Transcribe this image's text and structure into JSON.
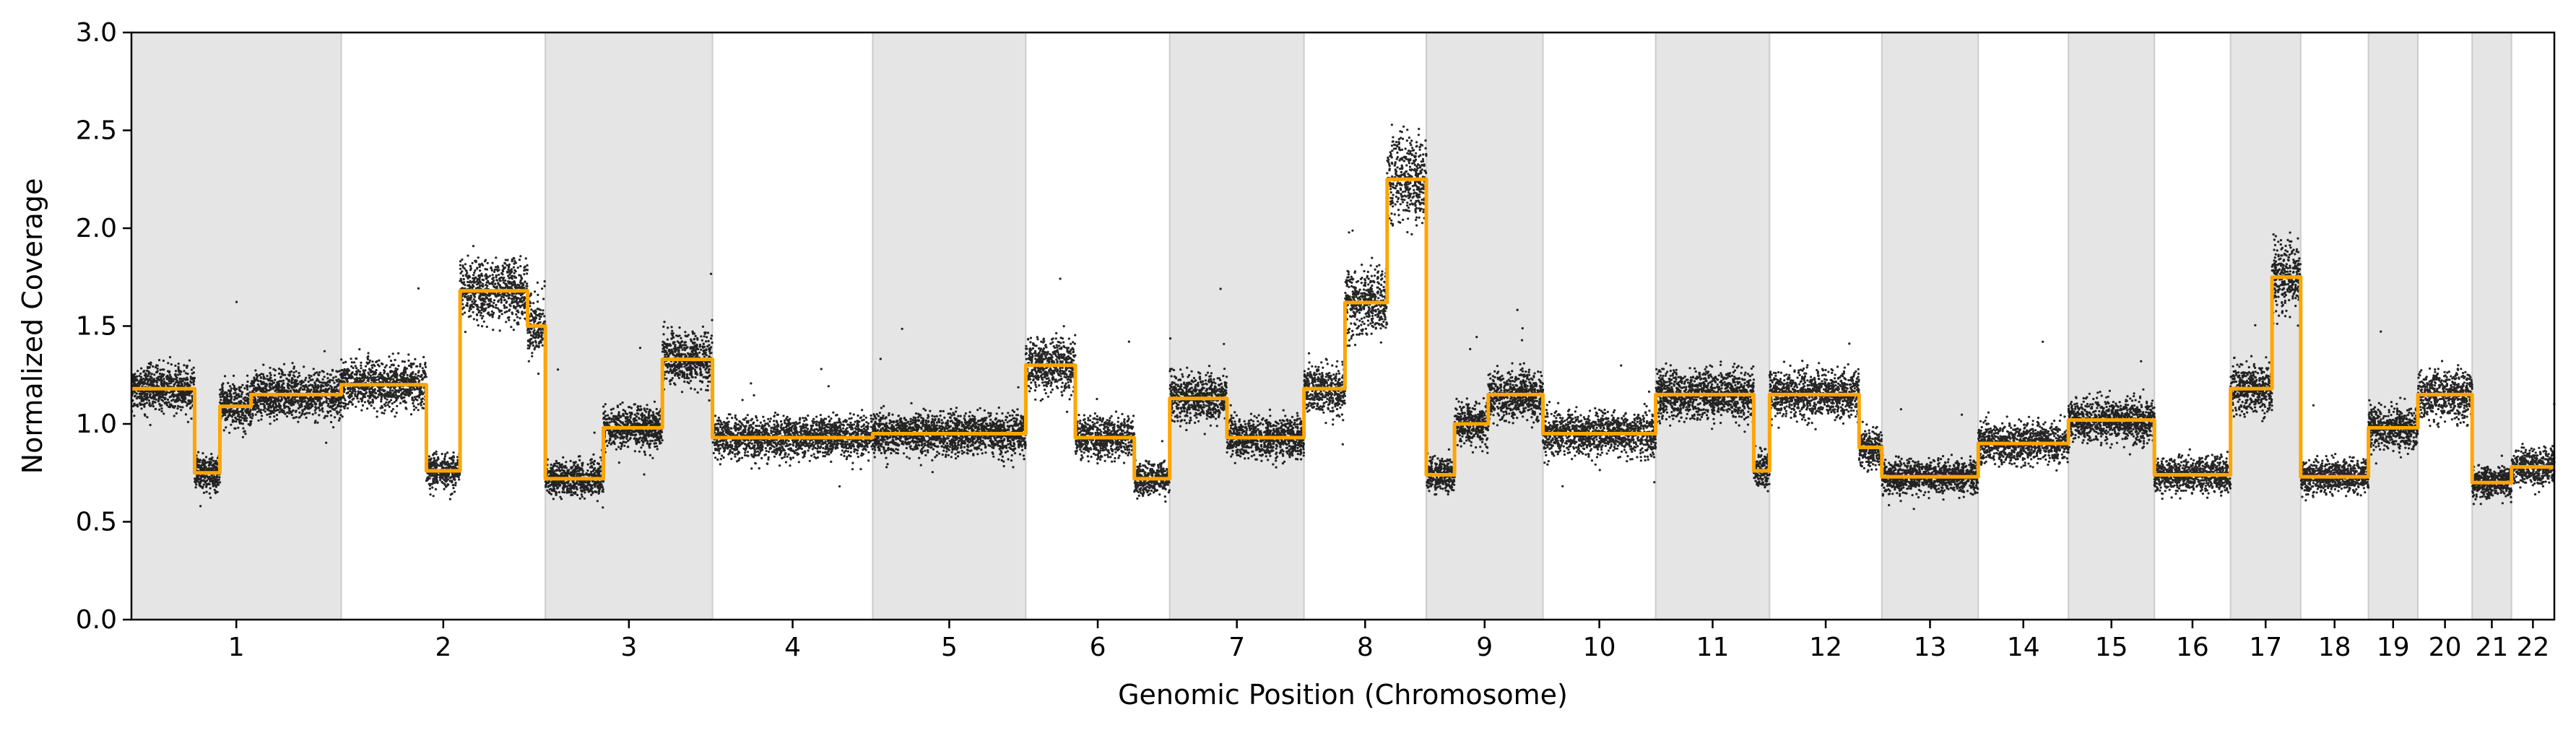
{
  "chart_data": {
    "type": "scatter",
    "xlabel": "Genomic Position (Chromosome)",
    "ylabel": "Normalized Coverage",
    "ylim": [
      0.0,
      3.0
    ],
    "yticks": [
      0.0,
      0.5,
      1.0,
      1.5,
      2.0,
      2.5,
      3.0
    ],
    "ytick_labels": [
      "0.0",
      "0.5",
      "1.0",
      "1.5",
      "2.0",
      "2.5",
      "3.0"
    ],
    "grid": false,
    "legend": "none",
    "colors": {
      "points": "#000000",
      "segment_line": "#FFA500",
      "band_shade": "#e5e5e5",
      "band_edge": "#cccccc"
    },
    "chromosomes": [
      {
        "label": "1",
        "start": 0.0,
        "end": 248.956
      },
      {
        "label": "2",
        "start": 248.956,
        "end": 491.149
      },
      {
        "label": "3",
        "start": 491.149,
        "end": 689.444
      },
      {
        "label": "4",
        "start": 689.444,
        "end": 879.658
      },
      {
        "label": "5",
        "start": 879.658,
        "end": 1061.196
      },
      {
        "label": "6",
        "start": 1061.196,
        "end": 1232.001
      },
      {
        "label": "7",
        "start": 1232.001,
        "end": 1391.347
      },
      {
        "label": "8",
        "start": 1391.347,
        "end": 1536.485
      },
      {
        "label": "9",
        "start": 1536.485,
        "end": 1674.88
      },
      {
        "label": "10",
        "start": 1674.88,
        "end": 1808.677
      },
      {
        "label": "11",
        "start": 1808.677,
        "end": 1943.764
      },
      {
        "label": "12",
        "start": 1943.764,
        "end": 2077.039
      },
      {
        "label": "13",
        "start": 2077.039,
        "end": 2191.403
      },
      {
        "label": "14",
        "start": 2191.403,
        "end": 2298.447
      },
      {
        "label": "15",
        "start": 2298.447,
        "end": 2400.438
      },
      {
        "label": "16",
        "start": 2400.438,
        "end": 2490.776
      },
      {
        "label": "17",
        "start": 2490.776,
        "end": 2574.033
      },
      {
        "label": "18",
        "start": 2574.033,
        "end": 2654.406
      },
      {
        "label": "19",
        "start": 2654.406,
        "end": 2713.023
      },
      {
        "label": "20",
        "start": 2713.023,
        "end": 2777.467
      },
      {
        "label": "21",
        "start": 2777.467,
        "end": 2824.177
      },
      {
        "label": "22",
        "start": 2824.177,
        "end": 2875.0
      }
    ],
    "shaded_chromosomes": [
      "1",
      "3",
      "5",
      "7",
      "9",
      "11",
      "13",
      "15",
      "17",
      "19",
      "21"
    ],
    "segments": [
      {
        "chrom": "1",
        "start": 0.0,
        "end": 75.0,
        "value": 1.18
      },
      {
        "chrom": "1",
        "start": 75.0,
        "end": 105.0,
        "value": 0.75
      },
      {
        "chrom": "1",
        "start": 105.0,
        "end": 142.0,
        "value": 1.09
      },
      {
        "chrom": "1",
        "start": 142.0,
        "end": 248.956,
        "value": 1.15
      },
      {
        "chrom": "2",
        "start": 248.956,
        "end": 350.0,
        "value": 1.2
      },
      {
        "chrom": "2",
        "start": 350.0,
        "end": 390.0,
        "value": 0.76
      },
      {
        "chrom": "2",
        "start": 390.0,
        "end": 470.0,
        "value": 1.68
      },
      {
        "chrom": "2",
        "start": 470.0,
        "end": 491.149,
        "value": 1.5
      },
      {
        "chrom": "3",
        "start": 491.149,
        "end": 560.0,
        "value": 0.72
      },
      {
        "chrom": "3",
        "start": 560.0,
        "end": 630.0,
        "value": 0.98
      },
      {
        "chrom": "3",
        "start": 630.0,
        "end": 689.444,
        "value": 1.33
      },
      {
        "chrom": "4",
        "start": 689.444,
        "end": 879.658,
        "value": 0.93
      },
      {
        "chrom": "5",
        "start": 879.658,
        "end": 1061.196,
        "value": 0.95
      },
      {
        "chrom": "6",
        "start": 1061.196,
        "end": 1120.0,
        "value": 1.3
      },
      {
        "chrom": "6",
        "start": 1120.0,
        "end": 1190.0,
        "value": 0.93
      },
      {
        "chrom": "6",
        "start": 1190.0,
        "end": 1232.001,
        "value": 0.72
      },
      {
        "chrom": "7",
        "start": 1232.001,
        "end": 1300.0,
        "value": 1.13
      },
      {
        "chrom": "7",
        "start": 1300.0,
        "end": 1391.347,
        "value": 0.93
      },
      {
        "chrom": "8",
        "start": 1391.347,
        "end": 1440.0,
        "value": 1.18
      },
      {
        "chrom": "8",
        "start": 1440.0,
        "end": 1490.0,
        "value": 1.62
      },
      {
        "chrom": "8",
        "start": 1490.0,
        "end": 1536.485,
        "value": 2.25
      },
      {
        "chrom": "9",
        "start": 1536.485,
        "end": 1570.0,
        "value": 0.74
      },
      {
        "chrom": "9",
        "start": 1570.0,
        "end": 1610.0,
        "value": 1.0
      },
      {
        "chrom": "9",
        "start": 1610.0,
        "end": 1674.88,
        "value": 1.15
      },
      {
        "chrom": "10",
        "start": 1674.88,
        "end": 1808.677,
        "value": 0.95
      },
      {
        "chrom": "11",
        "start": 1808.677,
        "end": 1925.0,
        "value": 1.15
      },
      {
        "chrom": "11",
        "start": 1925.0,
        "end": 1943.764,
        "value": 0.76
      },
      {
        "chrom": "12",
        "start": 1943.764,
        "end": 2050.0,
        "value": 1.15
      },
      {
        "chrom": "12",
        "start": 2050.0,
        "end": 2077.039,
        "value": 0.88
      },
      {
        "chrom": "13",
        "start": 2077.039,
        "end": 2191.403,
        "value": 0.73
      },
      {
        "chrom": "14",
        "start": 2191.403,
        "end": 2298.447,
        "value": 0.9
      },
      {
        "chrom": "15",
        "start": 2298.447,
        "end": 2400.438,
        "value": 1.02
      },
      {
        "chrom": "16",
        "start": 2400.438,
        "end": 2490.776,
        "value": 0.74
      },
      {
        "chrom": "17",
        "start": 2490.776,
        "end": 2540.0,
        "value": 1.18
      },
      {
        "chrom": "17",
        "start": 2540.0,
        "end": 2574.033,
        "value": 1.75
      },
      {
        "chrom": "18",
        "start": 2574.033,
        "end": 2654.406,
        "value": 0.73
      },
      {
        "chrom": "19",
        "start": 2654.406,
        "end": 2713.023,
        "value": 0.98
      },
      {
        "chrom": "20",
        "start": 2713.023,
        "end": 2777.467,
        "value": 1.15
      },
      {
        "chrom": "21",
        "start": 2777.467,
        "end": 2824.177,
        "value": 0.7
      },
      {
        "chrom": "22",
        "start": 2824.177,
        "end": 2875.0,
        "value": 0.78
      }
    ]
  }
}
